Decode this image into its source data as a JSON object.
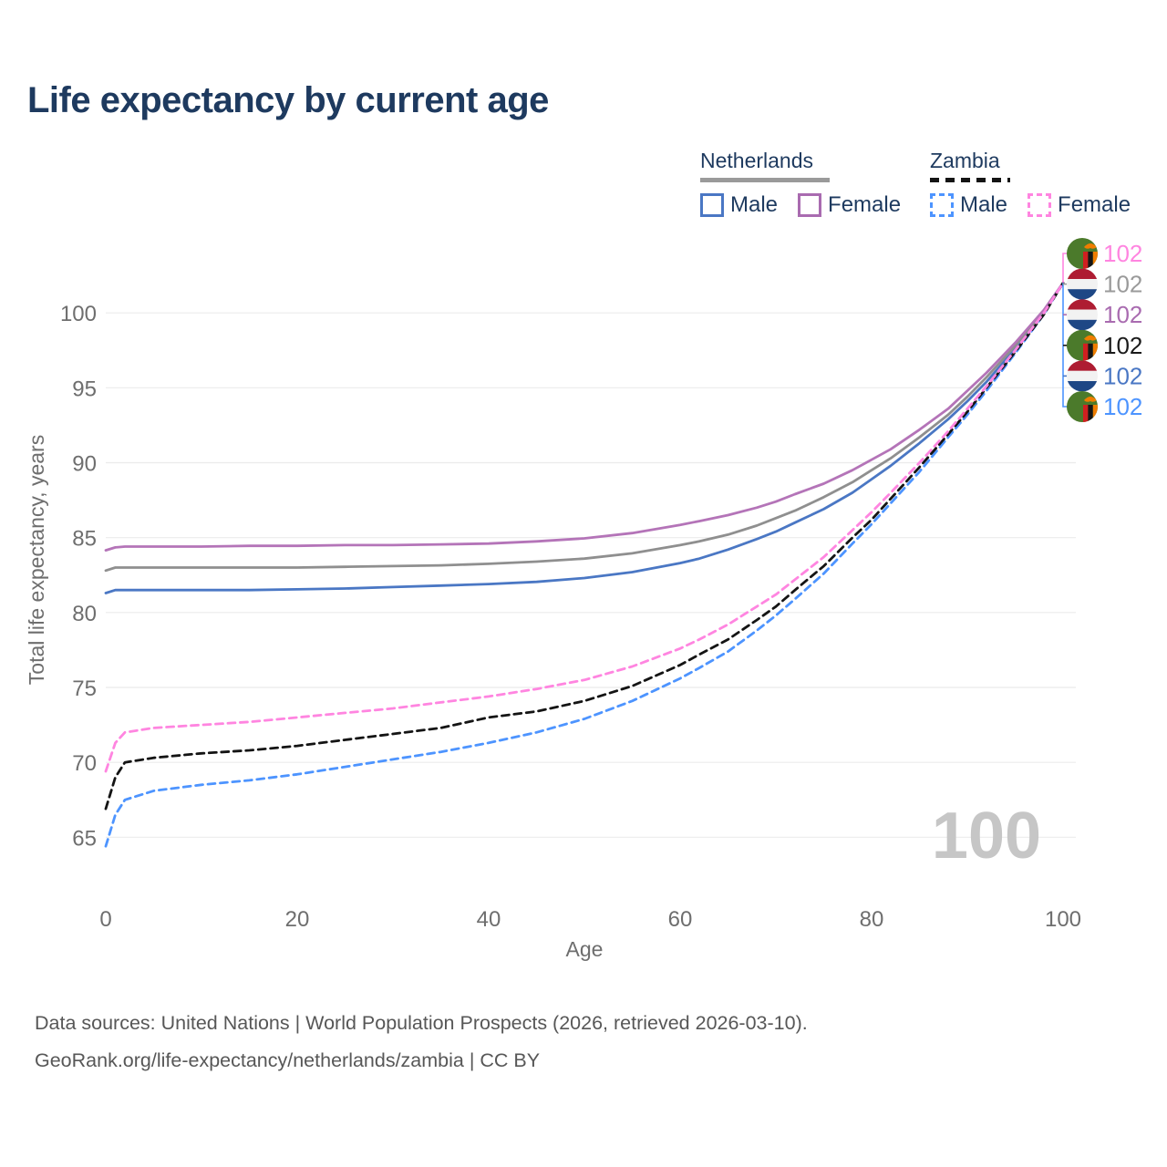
{
  "title": "Life expectancy by current age",
  "watermark": "100",
  "legend": {
    "groups": [
      {
        "label": "Netherlands",
        "line_style": "solid",
        "rule_color": "#9a9a9a",
        "items": [
          {
            "label": "Male",
            "color": "#4a77c4",
            "dashed": false
          },
          {
            "label": "Female",
            "color": "#a96bb0",
            "dashed": false
          }
        ]
      },
      {
        "label": "Zambia",
        "line_style": "dashed",
        "rule_color": "#141414",
        "items": [
          {
            "label": "Male",
            "color": "#4d94ff",
            "dashed": true
          },
          {
            "label": "Female",
            "color": "#ff85e0",
            "dashed": true
          }
        ]
      }
    ]
  },
  "chart_data": {
    "type": "line",
    "title": "Life expectancy by current age",
    "xlabel": "Age",
    "ylabel": "Total life expectancy, years",
    "xlim": [
      0,
      100
    ],
    "ylim": [
      63.5,
      103.6
    ],
    "xticks": [
      0,
      20,
      40,
      60,
      80,
      100
    ],
    "yticks": [
      65,
      70,
      75,
      80,
      85,
      90,
      95,
      100
    ],
    "grid": "horizontal",
    "x": [
      0,
      1,
      2,
      5,
      10,
      15,
      20,
      25,
      30,
      35,
      40,
      45,
      50,
      55,
      60,
      62,
      65,
      68,
      70,
      72,
      75,
      78,
      80,
      82,
      85,
      88,
      90,
      92,
      95,
      98,
      100
    ],
    "series": [
      {
        "name": "Netherlands Male",
        "country": "nl",
        "sex": "male",
        "color": "#4a77c4",
        "dashed": false,
        "end_label": "102",
        "values": [
          81.3,
          81.5,
          81.5,
          81.5,
          81.5,
          81.5,
          81.55,
          81.6,
          81.7,
          81.8,
          81.9,
          82.05,
          82.3,
          82.7,
          83.3,
          83.6,
          84.2,
          84.9,
          85.4,
          86.0,
          86.9,
          88.0,
          88.9,
          89.8,
          91.3,
          92.9,
          94.1,
          95.4,
          97.6,
          100.0,
          102
        ]
      },
      {
        "name": "Netherlands Total",
        "country": "nl",
        "sex": "total",
        "color": "#8f8f8f",
        "dashed": false,
        "end_label": "102",
        "values": [
          82.8,
          83.0,
          83.0,
          83.0,
          83.0,
          83.0,
          83.0,
          83.05,
          83.1,
          83.15,
          83.25,
          83.4,
          83.6,
          83.95,
          84.5,
          84.75,
          85.2,
          85.8,
          86.3,
          86.8,
          87.7,
          88.7,
          89.5,
          90.3,
          91.7,
          93.2,
          94.4,
          95.7,
          97.8,
          100.1,
          102
        ]
      },
      {
        "name": "Netherlands Female",
        "country": "nl",
        "sex": "female",
        "color": "#b474b8",
        "dashed": false,
        "end_label": "102",
        "values": [
          84.15,
          84.35,
          84.4,
          84.4,
          84.4,
          84.45,
          84.45,
          84.5,
          84.5,
          84.55,
          84.6,
          84.75,
          84.95,
          85.3,
          85.85,
          86.1,
          86.5,
          87.0,
          87.4,
          87.9,
          88.6,
          89.5,
          90.2,
          90.9,
          92.2,
          93.6,
          94.8,
          96.0,
          98.0,
          100.2,
          102
        ]
      },
      {
        "name": "Zambia Male",
        "country": "zm",
        "sex": "male",
        "color": "#4d94ff",
        "dashed": true,
        "end_label": "102",
        "values": [
          64.4,
          66.5,
          67.5,
          68.1,
          68.5,
          68.8,
          69.2,
          69.7,
          70.2,
          70.7,
          71.3,
          72.0,
          72.9,
          74.1,
          75.6,
          76.3,
          77.4,
          78.8,
          79.8,
          80.9,
          82.6,
          84.6,
          85.9,
          87.3,
          89.4,
          91.7,
          93.2,
          94.8,
          97.3,
          99.9,
          102
        ]
      },
      {
        "name": "Zambia Total",
        "country": "zm",
        "sex": "total",
        "color": "#141414",
        "dashed": true,
        "end_label": "102",
        "values": [
          66.9,
          69.0,
          70.0,
          70.3,
          70.6,
          70.8,
          71.1,
          71.5,
          71.9,
          72.3,
          73.0,
          73.4,
          74.1,
          75.1,
          76.5,
          77.2,
          78.2,
          79.5,
          80.4,
          81.5,
          83.1,
          85.0,
          86.2,
          87.6,
          89.7,
          91.9,
          93.4,
          95.0,
          97.4,
          99.9,
          102
        ]
      },
      {
        "name": "Zambia Female",
        "country": "zm",
        "sex": "female",
        "color": "#ff85e0",
        "dashed": true,
        "end_label": "102",
        "values": [
          69.4,
          71.3,
          72.0,
          72.3,
          72.5,
          72.7,
          73.0,
          73.3,
          73.6,
          74.0,
          74.4,
          74.9,
          75.5,
          76.4,
          77.6,
          78.2,
          79.2,
          80.4,
          81.2,
          82.2,
          83.7,
          85.5,
          86.7,
          88.0,
          90.0,
          92.1,
          93.6,
          95.1,
          97.5,
          100.0,
          102
        ]
      }
    ],
    "legend_position": "top-right",
    "end_labels": [
      {
        "text": "102",
        "color": "#ff85e0",
        "flag": "zm",
        "series": "Zambia Female"
      },
      {
        "text": "102",
        "color": "#9a9a9a",
        "flag": "nl",
        "series": "Netherlands Total"
      },
      {
        "text": "102",
        "color": "#a96bb0",
        "flag": "nl",
        "series": "Netherlands Female"
      },
      {
        "text": "102",
        "color": "#1a1a1a",
        "flag": "zm",
        "series": "Zambia Total"
      },
      {
        "text": "102",
        "color": "#4a77c4",
        "flag": "nl",
        "series": "Netherlands Male"
      },
      {
        "text": "102",
        "color": "#4d94ff",
        "flag": "zm",
        "series": "Zambia Male"
      }
    ]
  },
  "footer": {
    "line1": "Data sources: United Nations | World Population Prospects (2026, retrieved 2026-03-10).",
    "line2": "GeoRank.org/life-expectancy/netherlands/zambia | CC BY"
  }
}
